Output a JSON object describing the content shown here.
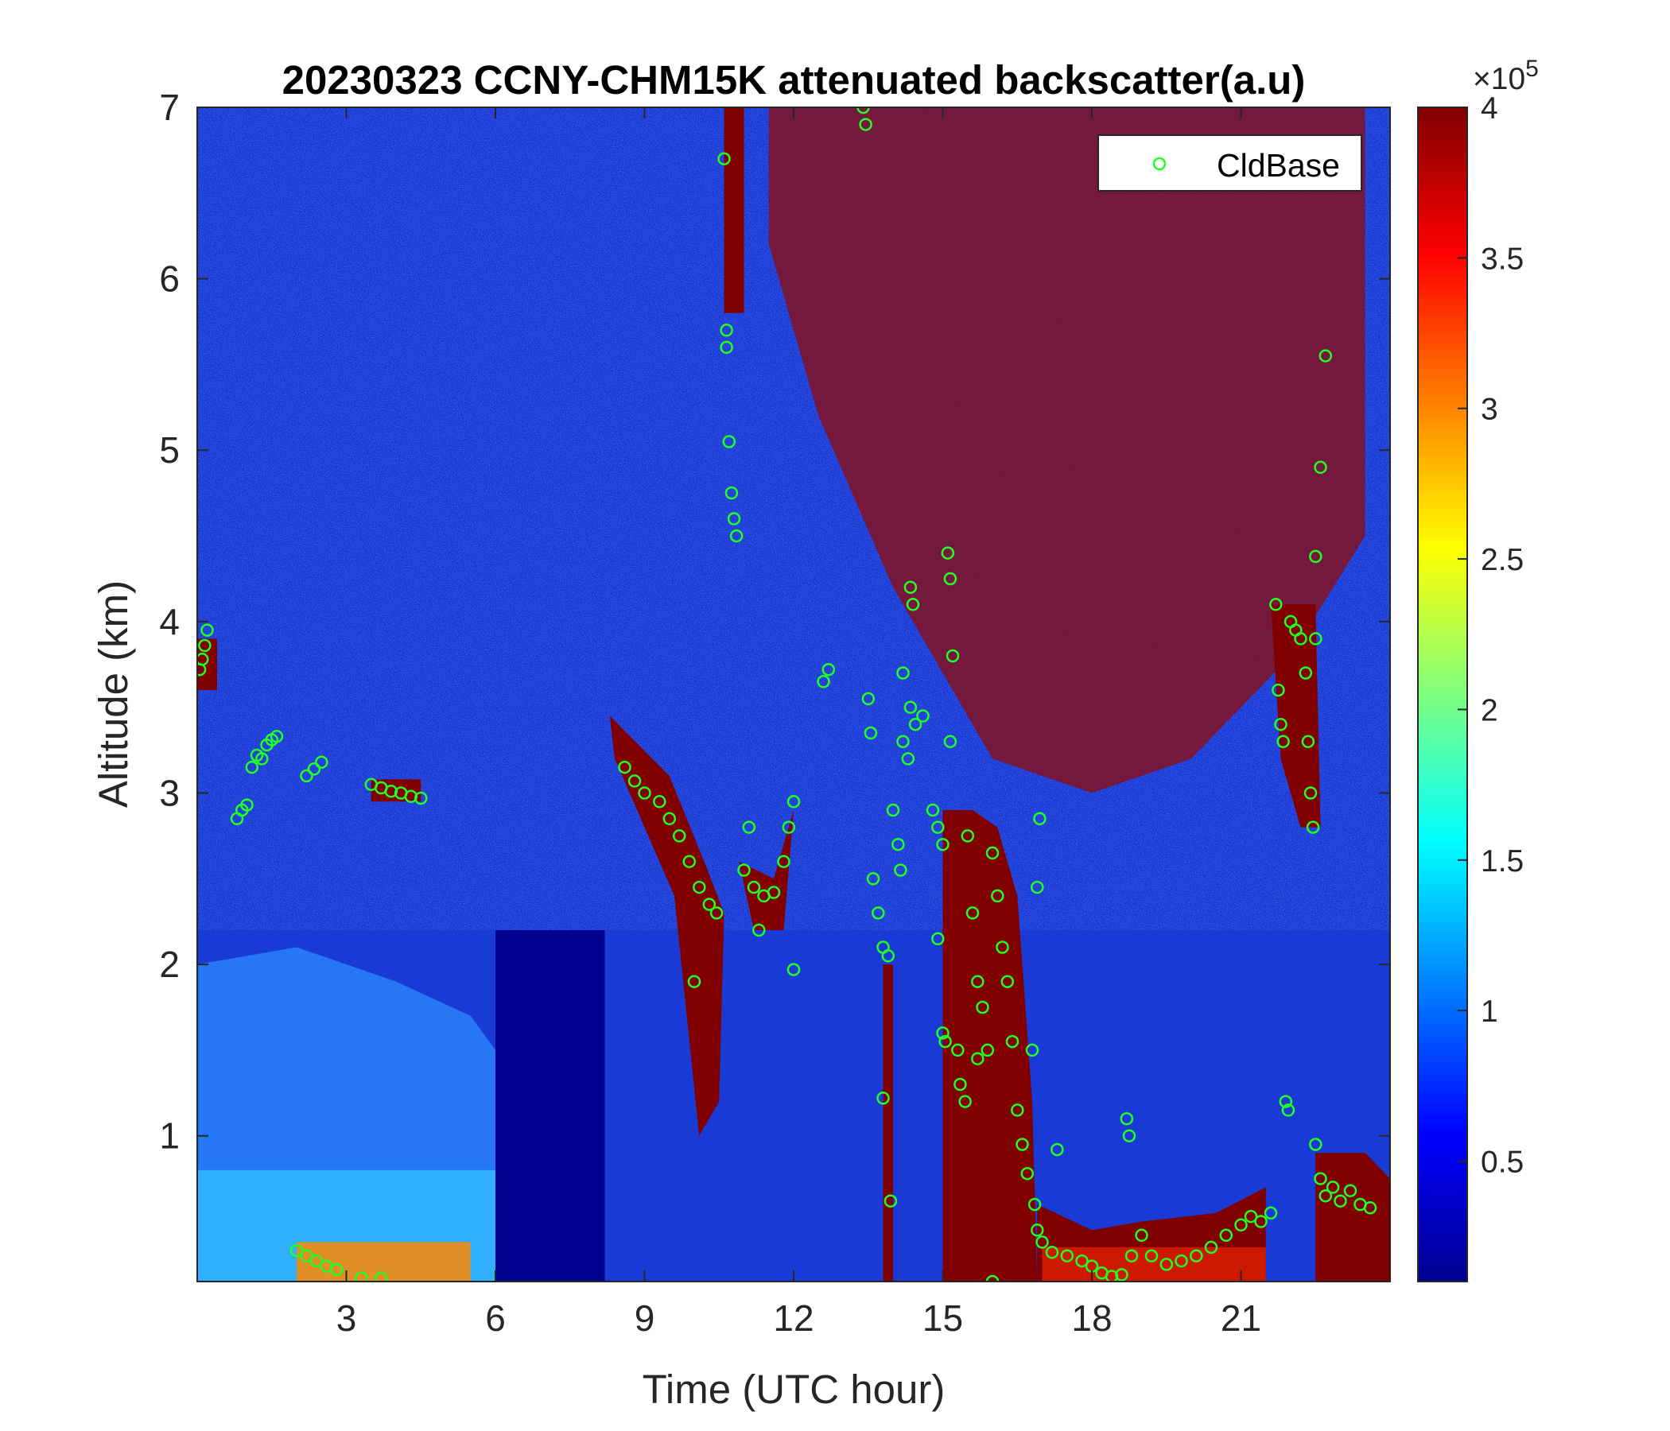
{
  "chart_data": {
    "type": "heatmap",
    "title": "20230323 CCNY-CHM15K attenuated backscatter(a.u)",
    "xlabel": "Time (UTC hour)",
    "ylabel": "Altitude (km)",
    "xlim": [
      0,
      24
    ],
    "ylim": [
      0.15,
      7
    ],
    "xticks": [
      3,
      6,
      9,
      12,
      15,
      18,
      21
    ],
    "yticks": [
      1,
      2,
      3,
      4,
      5,
      6,
      7
    ],
    "grid": false,
    "colormap": "jet",
    "colorbar": {
      "clim": [
        0.1,
        4
      ],
      "ticks": [
        0.5,
        1,
        1.5,
        2,
        2.5,
        3,
        3.5,
        4
      ],
      "tick_labels": [
        "0.5",
        "1",
        "1.5",
        "2",
        "2.5",
        "3",
        "3.5",
        "4"
      ],
      "exponent_label_prefix": "×10",
      "exponent_label_power": "5"
    },
    "legend": {
      "entries": [
        "CldBase"
      ],
      "placement": "top-right",
      "marker_color": "#22ff22"
    },
    "series": [
      {
        "name": "CldBase",
        "marker": "circle",
        "color": "#22ff22",
        "points": [
          [
            0.05,
            3.72
          ],
          [
            0.1,
            3.78
          ],
          [
            0.15,
            3.86
          ],
          [
            0.2,
            3.95
          ],
          [
            0.8,
            2.85
          ],
          [
            0.9,
            2.9
          ],
          [
            1.0,
            2.93
          ],
          [
            1.1,
            3.15
          ],
          [
            1.2,
            3.22
          ],
          [
            1.3,
            3.2
          ],
          [
            1.4,
            3.28
          ],
          [
            1.5,
            3.31
          ],
          [
            1.6,
            3.33
          ],
          [
            2.2,
            3.1
          ],
          [
            2.35,
            3.14
          ],
          [
            2.5,
            3.18
          ],
          [
            2.0,
            0.33
          ],
          [
            2.2,
            0.3
          ],
          [
            2.4,
            0.27
          ],
          [
            2.6,
            0.24
          ],
          [
            2.8,
            0.22
          ],
          [
            3.3,
            0.17
          ],
          [
            3.7,
            0.17
          ],
          [
            3.5,
            3.05
          ],
          [
            3.7,
            3.03
          ],
          [
            3.9,
            3.01
          ],
          [
            4.1,
            3.0
          ],
          [
            4.3,
            2.98
          ],
          [
            4.5,
            2.97
          ],
          [
            8.6,
            3.15
          ],
          [
            8.8,
            3.07
          ],
          [
            9.0,
            3.0
          ],
          [
            9.3,
            2.95
          ],
          [
            9.5,
            2.85
          ],
          [
            9.7,
            2.75
          ],
          [
            9.9,
            2.6
          ],
          [
            10.1,
            2.45
          ],
          [
            10.3,
            2.35
          ],
          [
            10.45,
            2.3
          ],
          [
            10.0,
            1.9
          ],
          [
            10.7,
            5.05
          ],
          [
            10.75,
            4.75
          ],
          [
            10.8,
            4.6
          ],
          [
            10.85,
            4.5
          ],
          [
            10.65,
            5.7
          ],
          [
            10.65,
            5.6
          ],
          [
            10.6,
            6.7
          ],
          [
            11.0,
            2.55
          ],
          [
            11.2,
            2.45
          ],
          [
            11.4,
            2.4
          ],
          [
            11.6,
            2.42
          ],
          [
            11.8,
            2.6
          ],
          [
            11.9,
            2.8
          ],
          [
            12.0,
            2.95
          ],
          [
            11.1,
            2.8
          ],
          [
            11.3,
            2.2
          ],
          [
            12.0,
            1.97
          ],
          [
            12.6,
            3.65
          ],
          [
            12.7,
            3.72
          ],
          [
            13.4,
            7.0
          ],
          [
            13.45,
            6.9
          ],
          [
            13.5,
            3.55
          ],
          [
            13.55,
            3.35
          ],
          [
            13.6,
            2.5
          ],
          [
            13.7,
            2.3
          ],
          [
            13.8,
            2.1
          ],
          [
            13.9,
            2.05
          ],
          [
            13.8,
            1.22
          ],
          [
            13.95,
            0.62
          ],
          [
            14.0,
            2.9
          ],
          [
            14.1,
            2.7
          ],
          [
            14.15,
            2.55
          ],
          [
            14.2,
            3.3
          ],
          [
            14.3,
            3.2
          ],
          [
            14.35,
            3.5
          ],
          [
            14.45,
            3.4
          ],
          [
            14.6,
            3.45
          ],
          [
            14.35,
            4.2
          ],
          [
            14.4,
            4.1
          ],
          [
            14.2,
            3.7
          ],
          [
            14.8,
            2.9
          ],
          [
            14.9,
            2.8
          ],
          [
            15.0,
            2.7
          ],
          [
            14.9,
            2.15
          ],
          [
            15.0,
            1.6
          ],
          [
            15.05,
            1.55
          ],
          [
            15.1,
            4.4
          ],
          [
            15.15,
            4.25
          ],
          [
            15.2,
            3.8
          ],
          [
            15.15,
            3.3
          ],
          [
            15.3,
            1.5
          ],
          [
            15.35,
            1.3
          ],
          [
            15.45,
            1.2
          ],
          [
            15.5,
            2.75
          ],
          [
            15.6,
            2.3
          ],
          [
            15.7,
            1.9
          ],
          [
            15.7,
            1.45
          ],
          [
            15.8,
            1.75
          ],
          [
            15.9,
            1.5
          ],
          [
            16.0,
            2.65
          ],
          [
            16.1,
            2.4
          ],
          [
            16.2,
            2.1
          ],
          [
            16.3,
            1.9
          ],
          [
            16.4,
            1.55
          ],
          [
            16.5,
            1.15
          ],
          [
            16.6,
            0.95
          ],
          [
            16.7,
            0.78
          ],
          [
            16.85,
            0.6
          ],
          [
            16.95,
            2.85
          ],
          [
            16.9,
            2.45
          ],
          [
            16.8,
            1.5
          ],
          [
            16.0,
            0.15
          ],
          [
            16.9,
            0.45
          ],
          [
            17.0,
            0.38
          ],
          [
            17.2,
            0.32
          ],
          [
            17.5,
            0.3
          ],
          [
            17.8,
            0.27
          ],
          [
            18.0,
            0.24
          ],
          [
            18.2,
            0.2
          ],
          [
            18.4,
            0.18
          ],
          [
            18.6,
            0.19
          ],
          [
            18.8,
            0.3
          ],
          [
            19.0,
            0.42
          ],
          [
            19.2,
            0.3
          ],
          [
            19.5,
            0.25
          ],
          [
            19.8,
            0.27
          ],
          [
            20.1,
            0.3
          ],
          [
            20.4,
            0.35
          ],
          [
            20.7,
            0.42
          ],
          [
            21.0,
            0.48
          ],
          [
            21.2,
            0.53
          ],
          [
            21.4,
            0.5
          ],
          [
            21.6,
            0.55
          ],
          [
            18.7,
            1.1
          ],
          [
            18.75,
            1.0
          ],
          [
            17.3,
            0.92
          ],
          [
            21.7,
            4.1
          ],
          [
            21.75,
            3.6
          ],
          [
            21.8,
            3.4
          ],
          [
            21.85,
            3.3
          ],
          [
            21.9,
            1.2
          ],
          [
            21.95,
            1.15
          ],
          [
            22.0,
            4.0
          ],
          [
            22.1,
            3.95
          ],
          [
            22.2,
            3.9
          ],
          [
            22.3,
            3.7
          ],
          [
            22.35,
            3.3
          ],
          [
            22.4,
            3.0
          ],
          [
            22.45,
            2.8
          ],
          [
            22.5,
            3.9
          ],
          [
            22.5,
            4.38
          ],
          [
            22.6,
            4.9
          ],
          [
            22.7,
            5.55
          ],
          [
            22.5,
            0.95
          ],
          [
            22.6,
            0.75
          ],
          [
            22.7,
            0.65
          ],
          [
            22.85,
            0.7
          ],
          [
            23.0,
            0.62
          ],
          [
            23.2,
            0.68
          ],
          [
            23.4,
            0.6
          ],
          [
            23.6,
            0.58
          ]
        ]
      }
    ]
  }
}
